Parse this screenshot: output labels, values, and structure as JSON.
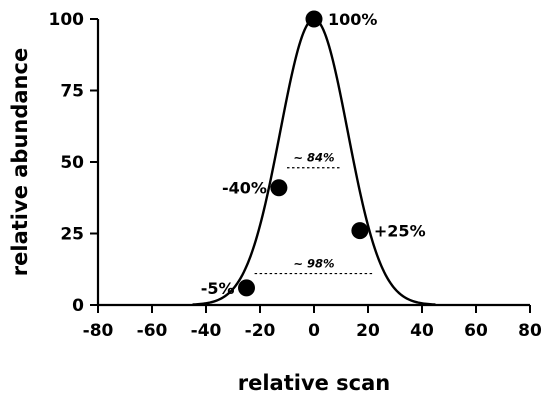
{
  "chart_data": {
    "type": "line",
    "xlabel": "relative scan",
    "ylabel": "relative abundance",
    "xlim": [
      -80,
      80
    ],
    "ylim": [
      0,
      100
    ],
    "xticks": [
      -80,
      -60,
      -40,
      -20,
      0,
      20,
      40,
      60,
      80
    ],
    "yticks": [
      0,
      25,
      50,
      75,
      100
    ],
    "xtick_labels": [
      "-80",
      "-60",
      "-40",
      "-20",
      "0",
      "20",
      "40",
      "60",
      "80"
    ],
    "ytick_labels": [
      "0",
      "25",
      "50",
      "75",
      "100"
    ],
    "grid": false,
    "series": [
      {
        "curve": "gaussian",
        "center": 0,
        "peak": 100,
        "sigma": 12.5,
        "color": "#000000"
      }
    ],
    "points": [
      {
        "x": -25,
        "y": 6,
        "label": "-5%"
      },
      {
        "x": -13,
        "y": 41,
        "label": "-40%"
      },
      {
        "x": 0,
        "y": 100,
        "label": "100%"
      },
      {
        "x": 17,
        "y": 26,
        "label": "+25%"
      }
    ],
    "annotations": [
      {
        "y": 48,
        "x_start": -10,
        "x_end": 10,
        "label": "~ 84%"
      },
      {
        "y": 11,
        "x_start": -22,
        "x_end": 22,
        "label": "~ 98%"
      }
    ]
  }
}
